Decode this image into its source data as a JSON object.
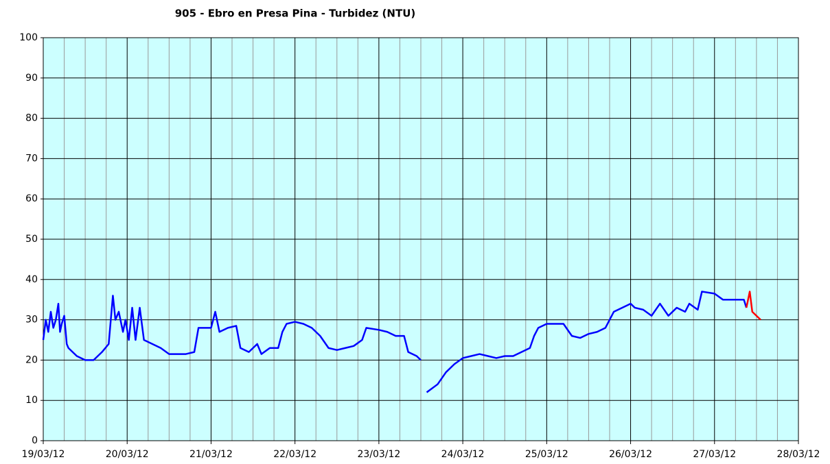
{
  "chart_data": {
    "type": "line",
    "title": "905 - Ebro en Presa Pina - Turbidez (NTU)",
    "xlim": [
      0,
      9
    ],
    "xticks": [
      {
        "value": 0,
        "label": "19/03/12"
      },
      {
        "value": 1,
        "label": "20/03/12"
      },
      {
        "value": 2,
        "label": "21/03/12"
      },
      {
        "value": 3,
        "label": "22/03/12"
      },
      {
        "value": 4,
        "label": "23/03/12"
      },
      {
        "value": 5,
        "label": "24/03/12"
      },
      {
        "value": 6,
        "label": "25/03/12"
      },
      {
        "value": 7,
        "label": "26/03/12"
      },
      {
        "value": 8,
        "label": "27/03/12"
      },
      {
        "value": 9,
        "label": "28/03/12"
      }
    ],
    "ylim": [
      0,
      100
    ],
    "yticks": [
      0,
      10,
      20,
      30,
      40,
      50,
      60,
      70,
      80,
      90,
      100
    ],
    "grid": true,
    "series": [
      {
        "color": "#0000ff",
        "x": [
          0.0,
          0.03,
          0.06,
          0.09,
          0.12,
          0.15,
          0.18,
          0.2,
          0.22,
          0.25,
          0.28,
          0.3,
          0.4,
          0.5,
          0.6,
          0.7,
          0.78,
          0.83,
          0.86,
          0.9,
          0.95,
          0.98,
          1.02,
          1.06,
          1.1,
          1.15,
          1.2,
          1.3,
          1.4,
          1.5,
          1.7,
          1.8,
          1.85,
          2.0,
          2.05,
          2.1,
          2.2,
          2.3,
          2.35,
          2.45,
          2.55,
          2.6,
          2.7,
          2.8,
          2.85,
          2.9,
          3.0,
          3.1,
          3.2,
          3.3,
          3.4,
          3.5,
          3.6,
          3.7,
          3.8,
          3.85,
          4.0,
          4.1,
          4.2,
          4.3,
          4.35,
          4.45,
          4.5,
          4.53,
          4.57,
          4.7,
          4.8,
          4.9,
          5.0,
          5.1,
          5.2,
          5.3,
          5.4,
          5.5,
          5.6,
          5.7,
          5.8,
          5.85,
          5.9,
          6.0,
          6.1,
          6.2,
          6.3,
          6.4,
          6.5,
          6.6,
          6.7,
          6.75,
          6.8,
          6.9,
          7.0,
          7.05,
          7.15,
          7.25,
          7.35,
          7.45,
          7.55,
          7.65,
          7.7,
          7.8,
          7.85,
          8.0,
          8.1,
          8.2,
          8.35,
          8.38
        ],
        "values": [
          25,
          30,
          27,
          32,
          28,
          30,
          34,
          27,
          29,
          31,
          24,
          23,
          21,
          20,
          20,
          22,
          24,
          36,
          30,
          32,
          27,
          30,
          25,
          33,
          25,
          33,
          25,
          24,
          23,
          21.5,
          21.5,
          22,
          28,
          28,
          32,
          27,
          28,
          28.5,
          23,
          22,
          24,
          21.5,
          23,
          23,
          27,
          29,
          29.5,
          29,
          28,
          26,
          23,
          22.5,
          23,
          23.5,
          25,
          28,
          27.5,
          27,
          26,
          26,
          22,
          21,
          20,
          null,
          12,
          14,
          17,
          19,
          20.5,
          21,
          21.5,
          21,
          20.5,
          21,
          21,
          22,
          23,
          26,
          28,
          29,
          29,
          29,
          26,
          25.5,
          26.5,
          27,
          28,
          30,
          32,
          33,
          34,
          33,
          32.5,
          31,
          34,
          31,
          33,
          32,
          34,
          32.5,
          37,
          36.5,
          35,
          35,
          35,
          33
        ]
      },
      {
        "color": "#ff0000",
        "x": [
          8.38,
          8.42,
          8.45,
          8.5,
          8.55
        ],
        "values": [
          33,
          37,
          32,
          31,
          30
        ]
      }
    ]
  }
}
